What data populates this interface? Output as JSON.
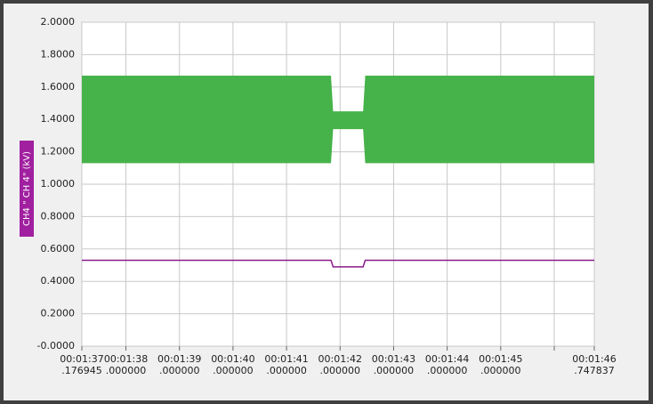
{
  "chart_data": {
    "type": "line",
    "y_label": "CH4 \" CH 4\" (kV)",
    "x": [
      97.176945,
      101.83,
      101.87,
      102.43,
      102.47,
      106.747837
    ],
    "band": {
      "color": "#46b34a",
      "upper": [
        1.67,
        1.67,
        1.45,
        1.45,
        1.67,
        1.67
      ],
      "lower": [
        1.13,
        1.13,
        1.34,
        1.34,
        1.13,
        1.13
      ]
    },
    "series": [
      {
        "color": "#8b1a8b",
        "values": [
          0.53,
          0.53,
          0.49,
          0.49,
          0.53,
          0.53
        ]
      }
    ],
    "xlim": [
      97.176945,
      106.747837
    ],
    "ylim": [
      0,
      2
    ],
    "grid": true,
    "xticks": [
      {
        "value": 97.176945,
        "label": [
          "00:01:37",
          ".176945"
        ]
      },
      {
        "value": 98,
        "label": [
          "00:01:38",
          ".000000"
        ]
      },
      {
        "value": 99,
        "label": [
          "00:01:39",
          ".000000"
        ]
      },
      {
        "value": 100,
        "label": [
          "00:01:40",
          ".000000"
        ]
      },
      {
        "value": 101,
        "label": [
          "00:01:41",
          ".000000"
        ]
      },
      {
        "value": 102,
        "label": [
          "00:01:42",
          ".000000"
        ]
      },
      {
        "value": 103,
        "label": [
          "00:01:43",
          ".000000"
        ]
      },
      {
        "value": 104,
        "label": [
          "00:01:44",
          ".000000"
        ]
      },
      {
        "value": 105,
        "label": [
          "00:01:45",
          ".000000"
        ]
      },
      {
        "value": 106,
        "label": null
      },
      {
        "value": 106.747837,
        "label": [
          "00:01:46",
          ".747837"
        ]
      }
    ],
    "yticks": [
      {
        "value": 0,
        "label": "-0.0000"
      },
      {
        "value": 0.2,
        "label": "0.2000"
      },
      {
        "value": 0.4,
        "label": "0.4000"
      },
      {
        "value": 0.6,
        "label": "0.6000"
      },
      {
        "value": 0.8,
        "label": "0.8000"
      },
      {
        "value": 1,
        "label": "1.0000"
      },
      {
        "value": 1.2,
        "label": "1.2000"
      },
      {
        "value": 1.4,
        "label": "1.4000"
      },
      {
        "value": 1.6,
        "label": "1.6000"
      },
      {
        "value": 1.8,
        "label": "1.8000"
      },
      {
        "value": 2,
        "label": "2.0000"
      }
    ]
  }
}
